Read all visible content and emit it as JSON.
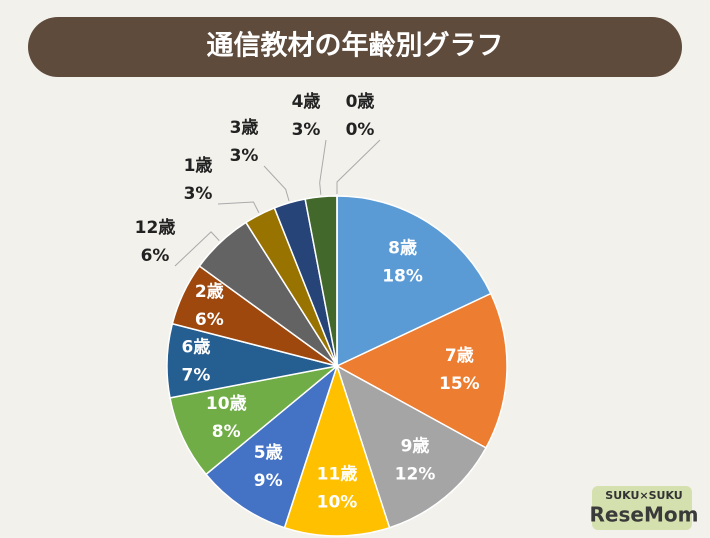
{
  "chart_data": {
    "type": "pie",
    "title": "通信教材の年齢別グラフ",
    "categories": [
      "8歳",
      "7歳",
      "9歳",
      "11歳",
      "5歳",
      "10歳",
      "6歳",
      "2歳",
      "12歳",
      "1歳",
      "3歳",
      "4歳",
      "0歳"
    ],
    "values": [
      18,
      15,
      12,
      10,
      9,
      8,
      7,
      6,
      6,
      3,
      3,
      3,
      0
    ],
    "value_labels": [
      "18%",
      "15%",
      "12%",
      "10%",
      "9%",
      "8%",
      "7%",
      "6%",
      "6%",
      "3%",
      "3%",
      "3%",
      "0%"
    ],
    "colors": [
      "#5b9bd5",
      "#ed7d31",
      "#a5a5a5",
      "#ffc000",
      "#4472c4",
      "#70ad47",
      "#255e91",
      "#9e480e",
      "#636363",
      "#997300",
      "#264478",
      "#43682b",
      "#7cafdd"
    ]
  },
  "logo": {
    "top": "SUKU×SUKU",
    "bottom": "ReseMom"
  }
}
